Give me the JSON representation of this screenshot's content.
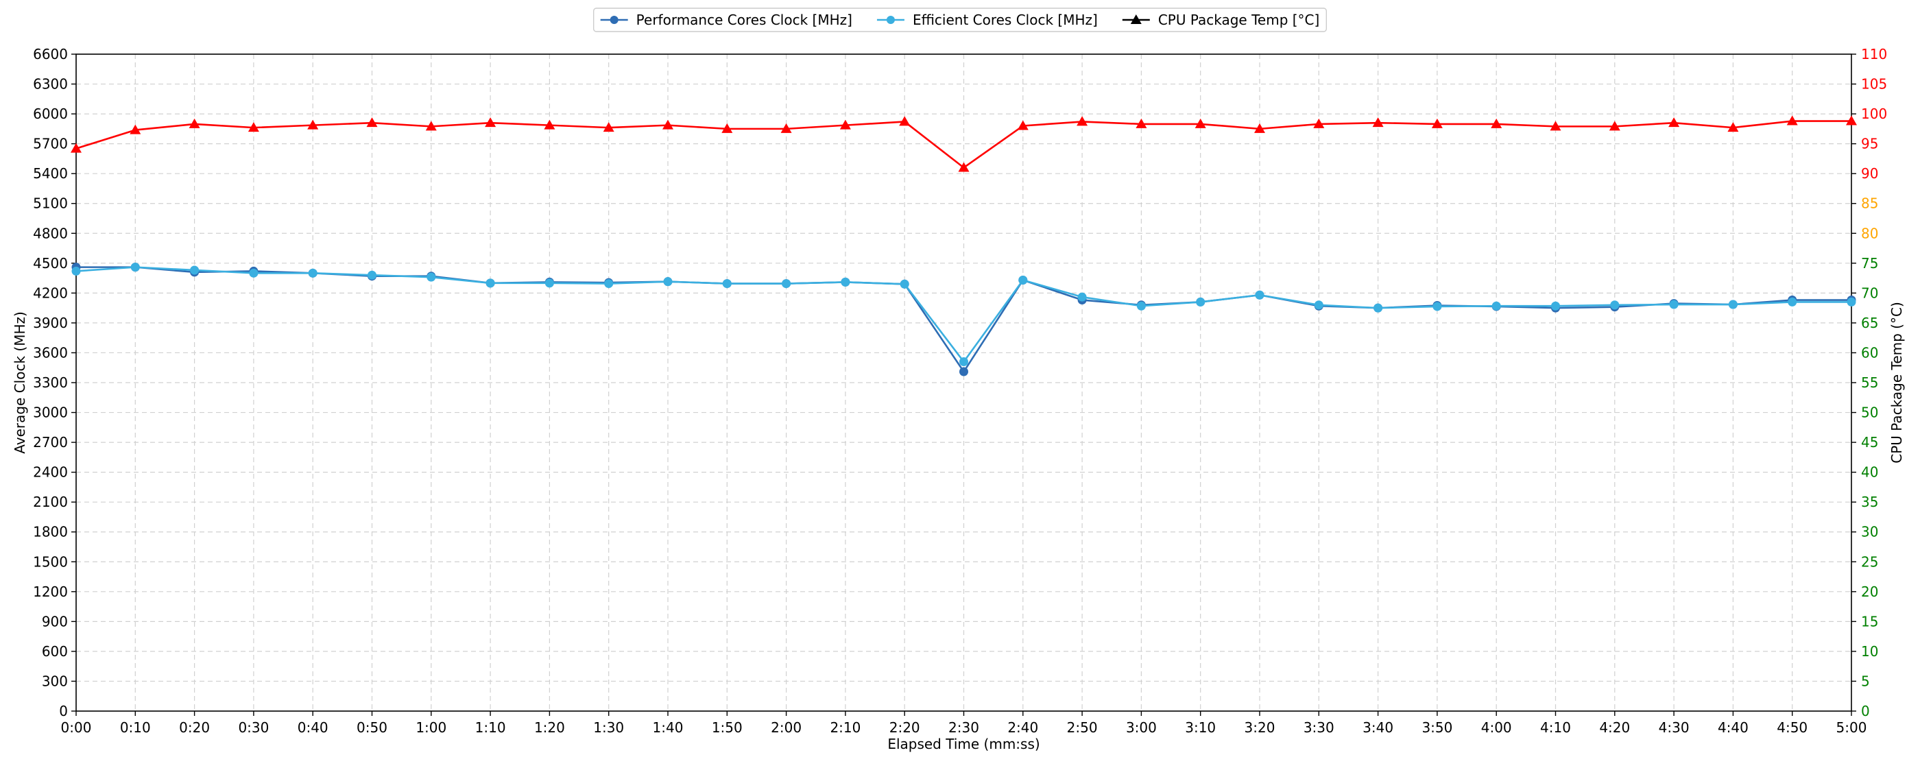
{
  "chart_data": {
    "type": "line",
    "x": [
      "0:00",
      "0:10",
      "0:20",
      "0:30",
      "0:40",
      "0:50",
      "1:00",
      "1:10",
      "1:20",
      "1:30",
      "1:40",
      "1:50",
      "2:00",
      "2:10",
      "2:20",
      "2:30",
      "2:40",
      "2:50",
      "3:00",
      "3:10",
      "3:20",
      "3:30",
      "3:40",
      "3:50",
      "4:00",
      "4:10",
      "4:20",
      "4:30",
      "4:40",
      "4:50",
      "5:00"
    ],
    "xlabel": "Elapsed Time (mm:ss)",
    "ylabel": "Average Clock (MHz)",
    "y2label": "CPU Package Temp (°C)",
    "ylim": [
      0,
      6600
    ],
    "yticks": [
      0,
      300,
      600,
      900,
      1200,
      1500,
      1800,
      2100,
      2400,
      2700,
      3000,
      3300,
      3600,
      3900,
      4200,
      4500,
      4800,
      5100,
      5400,
      5700,
      6000,
      6300,
      6600
    ],
    "y2lim": [
      0,
      110
    ],
    "y2ticks": [
      0,
      5,
      10,
      15,
      20,
      25,
      30,
      35,
      40,
      45,
      50,
      55,
      60,
      65,
      70,
      75,
      80,
      85,
      90,
      95,
      100,
      105,
      110
    ],
    "y2tick_colors": {
      "normal": "#008000",
      "warm": "#FFA500",
      "hot": "#FF0000",
      "warm_from": 80,
      "hot_from": 90
    },
    "grid": true,
    "legend_position": "top-center",
    "series": [
      {
        "name": "Performance Cores Clock [MHz]",
        "axis": "left",
        "color": "#2E6DB4",
        "marker": "circle",
        "values": [
          4460,
          4460,
          4410,
          4420,
          4400,
          4370,
          4370,
          4300,
          4310,
          4305,
          4315,
          4295,
          4295,
          4310,
          4290,
          3410,
          4330,
          4130,
          4080,
          4110,
          4180,
          4070,
          4050,
          4075,
          4065,
          4050,
          4060,
          4095,
          4085,
          4130,
          4130
        ]
      },
      {
        "name": "Efficient Cores Clock [MHz]",
        "axis": "left",
        "color": "#3AAFE0",
        "marker": "circle",
        "values": [
          4420,
          4460,
          4430,
          4400,
          4400,
          4380,
          4360,
          4300,
          4300,
          4295,
          4315,
          4295,
          4295,
          4310,
          4290,
          3510,
          4330,
          4160,
          4070,
          4110,
          4180,
          4080,
          4050,
          4065,
          4070,
          4070,
          4080,
          4085,
          4085,
          4110,
          4110
        ]
      },
      {
        "name": "CPU Package Temp [°C]",
        "axis": "right",
        "color": "#FF0000",
        "legend_color": "#000000",
        "marker": "triangle",
        "values": [
          94.2,
          97.3,
          98.3,
          97.7,
          98.1,
          98.5,
          97.9,
          98.5,
          98.1,
          97.7,
          98.1,
          97.5,
          97.5,
          98.1,
          98.7,
          91.0,
          98.0,
          98.7,
          98.3,
          98.3,
          97.5,
          98.3,
          98.5,
          98.3,
          98.3,
          97.9,
          97.9,
          98.5,
          97.7,
          98.8,
          98.8
        ]
      }
    ]
  }
}
